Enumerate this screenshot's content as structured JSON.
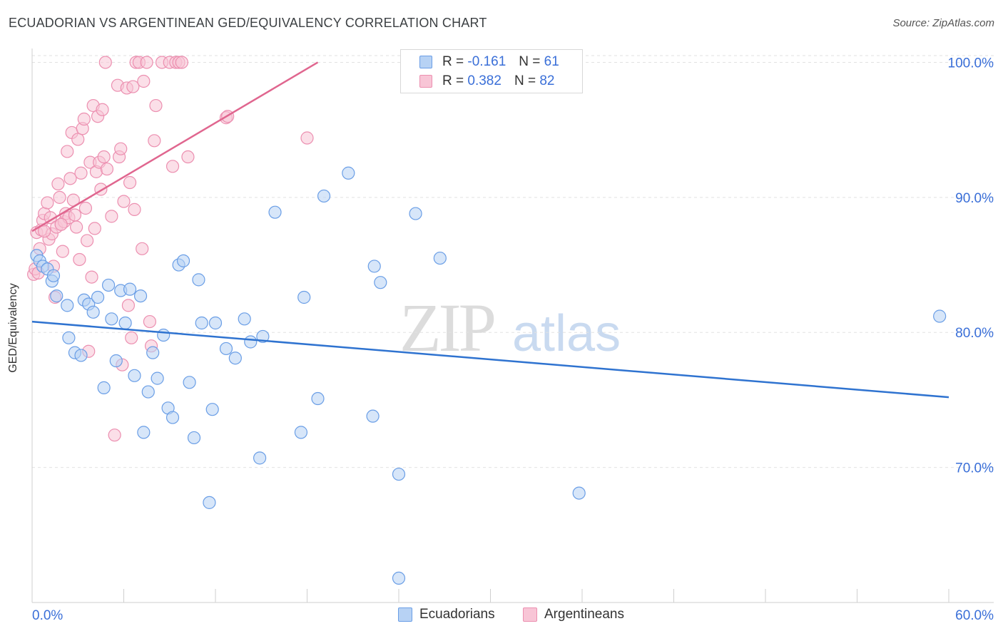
{
  "title": "ECUADORIAN VS ARGENTINEAN GED/EQUIVALENCY CORRELATION CHART",
  "source": "Source: ZipAtlas.com",
  "watermark": {
    "zip": "ZIP",
    "atlas": "atlas"
  },
  "legend": {
    "rows": [
      {
        "r_label": "R =",
        "r_value": "-0.161",
        "n_label": "N =",
        "n_value": "61"
      },
      {
        "r_label": "R =",
        "r_value": "0.382",
        "n_label": "N =",
        "n_value": "82"
      }
    ]
  },
  "bottom_legend": [
    "Ecuadorians",
    "Argentineans"
  ],
  "colors": {
    "blue_fill": "#b7d2f4",
    "blue_stroke": "#6a9ee6",
    "blue_line": "#2f73d0",
    "pink_fill": "#f8c5d6",
    "pink_stroke": "#ec8fb0",
    "pink_line": "#e0668f",
    "tick_label": "#3a6fd8",
    "grid": "#e2e2e2"
  },
  "chart_data": {
    "type": "scatter",
    "title": "ECUADORIAN VS ARGENTINEAN GED/EQUIVALENCY CORRELATION CHART",
    "xlabel": "",
    "ylabel": "GED/Equivalency",
    "xlim": [
      0,
      60
    ],
    "ylim": [
      60,
      100.5
    ],
    "x_tick_labels": [
      "0.0%",
      "60.0%"
    ],
    "y_ticks": [
      70,
      80,
      90,
      100
    ],
    "y_tick_labels": [
      "70.0%",
      "80.0%",
      "90.0%",
      "100.0%"
    ],
    "grid": true,
    "legend_position": "top-center",
    "series": [
      {
        "name": "Ecuadorians",
        "color": "#6a9ee6",
        "r": -0.161,
        "n": 61,
        "trend": {
          "x": [
            0,
            60
          ],
          "y": [
            80.8,
            75.2
          ]
        },
        "points": [
          [
            0.3,
            85.7
          ],
          [
            0.5,
            85.3
          ],
          [
            0.7,
            84.9
          ],
          [
            1.0,
            84.7
          ],
          [
            1.3,
            83.8
          ],
          [
            1.4,
            84.2
          ],
          [
            1.6,
            82.7
          ],
          [
            2.3,
            82.0
          ],
          [
            2.4,
            79.6
          ],
          [
            2.8,
            78.5
          ],
          [
            3.2,
            78.3
          ],
          [
            3.4,
            82.4
          ],
          [
            3.7,
            82.1
          ],
          [
            4.0,
            81.5
          ],
          [
            4.3,
            82.6
          ],
          [
            4.7,
            75.9
          ],
          [
            5.0,
            83.5
          ],
          [
            5.2,
            81.0
          ],
          [
            5.5,
            77.9
          ],
          [
            5.8,
            83.1
          ],
          [
            6.1,
            80.7
          ],
          [
            6.4,
            83.2
          ],
          [
            6.7,
            76.8
          ],
          [
            7.1,
            82.7
          ],
          [
            7.3,
            72.6
          ],
          [
            7.6,
            75.6
          ],
          [
            7.9,
            78.5
          ],
          [
            8.2,
            76.6
          ],
          [
            8.6,
            79.8
          ],
          [
            8.9,
            74.4
          ],
          [
            9.2,
            73.7
          ],
          [
            9.6,
            85.0
          ],
          [
            9.9,
            85.3
          ],
          [
            10.3,
            76.3
          ],
          [
            10.6,
            72.2
          ],
          [
            10.9,
            83.9
          ],
          [
            11.1,
            80.7
          ],
          [
            11.6,
            67.4
          ],
          [
            11.8,
            74.3
          ],
          [
            12.0,
            80.7
          ],
          [
            12.7,
            78.8
          ],
          [
            13.3,
            78.1
          ],
          [
            13.9,
            81.0
          ],
          [
            14.3,
            79.3
          ],
          [
            14.9,
            70.7
          ],
          [
            15.1,
            79.7
          ],
          [
            15.9,
            88.9
          ],
          [
            17.6,
            72.6
          ],
          [
            17.8,
            82.6
          ],
          [
            18.7,
            75.1
          ],
          [
            19.1,
            90.1
          ],
          [
            20.7,
            91.8
          ],
          [
            22.3,
            73.8
          ],
          [
            22.4,
            84.9
          ],
          [
            22.8,
            83.7
          ],
          [
            24.0,
            69.5
          ],
          [
            24.0,
            61.8
          ],
          [
            25.1,
            88.8
          ],
          [
            26.7,
            85.5
          ],
          [
            35.8,
            68.1
          ],
          [
            59.4,
            81.2
          ]
        ]
      },
      {
        "name": "Argentineans",
        "color": "#ec8fb0",
        "r": 0.382,
        "n": 82,
        "trend": {
          "x": [
            0,
            18.7
          ],
          "y": [
            87.5,
            100
          ]
        },
        "points": [
          [
            0.1,
            84.3
          ],
          [
            0.2,
            84.7
          ],
          [
            0.3,
            87.4
          ],
          [
            0.4,
            84.4
          ],
          [
            0.5,
            86.2
          ],
          [
            0.6,
            87.6
          ],
          [
            0.7,
            88.3
          ],
          [
            0.8,
            88.8
          ],
          [
            1.0,
            89.6
          ],
          [
            1.1,
            86.9
          ],
          [
            1.2,
            88.5
          ],
          [
            1.3,
            87.3
          ],
          [
            1.4,
            84.9
          ],
          [
            1.5,
            82.6
          ],
          [
            1.6,
            87.8
          ],
          [
            1.7,
            91.0
          ],
          [
            1.8,
            90.0
          ],
          [
            1.9,
            88.0
          ],
          [
            2.0,
            86.0
          ],
          [
            2.1,
            88.2
          ],
          [
            2.2,
            88.8
          ],
          [
            2.3,
            93.4
          ],
          [
            2.4,
            88.5
          ],
          [
            2.5,
            91.4
          ],
          [
            2.6,
            94.8
          ],
          [
            2.7,
            89.8
          ],
          [
            2.8,
            88.7
          ],
          [
            2.9,
            87.8
          ],
          [
            3.0,
            94.3
          ],
          [
            3.1,
            85.4
          ],
          [
            3.2,
            91.8
          ],
          [
            3.3,
            95.1
          ],
          [
            3.4,
            95.8
          ],
          [
            3.5,
            89.2
          ],
          [
            3.6,
            86.8
          ],
          [
            3.7,
            78.6
          ],
          [
            3.8,
            92.6
          ],
          [
            3.9,
            84.1
          ],
          [
            4.0,
            96.8
          ],
          [
            4.1,
            87.7
          ],
          [
            4.2,
            91.9
          ],
          [
            4.3,
            96.0
          ],
          [
            4.4,
            92.6
          ],
          [
            4.5,
            90.6
          ],
          [
            4.6,
            96.5
          ],
          [
            4.7,
            93.0
          ],
          [
            4.8,
            100.0
          ],
          [
            4.9,
            92.1
          ],
          [
            5.2,
            88.6
          ],
          [
            5.4,
            72.4
          ],
          [
            5.6,
            98.3
          ],
          [
            5.7,
            93.0
          ],
          [
            5.8,
            93.6
          ],
          [
            5.9,
            77.6
          ],
          [
            6.0,
            89.7
          ],
          [
            6.2,
            98.1
          ],
          [
            6.3,
            82.0
          ],
          [
            6.4,
            91.1
          ],
          [
            6.5,
            79.6
          ],
          [
            6.6,
            98.2
          ],
          [
            6.7,
            89.1
          ],
          [
            6.8,
            100.0
          ],
          [
            7.0,
            100.0
          ],
          [
            7.2,
            86.2
          ],
          [
            7.3,
            98.6
          ],
          [
            7.5,
            100.0
          ],
          [
            7.7,
            80.8
          ],
          [
            7.8,
            79.0
          ],
          [
            8.0,
            94.2
          ],
          [
            8.1,
            96.8
          ],
          [
            8.5,
            100.0
          ],
          [
            9.0,
            100.0
          ],
          [
            9.2,
            92.3
          ],
          [
            9.4,
            100.0
          ],
          [
            9.6,
            100.0
          ],
          [
            9.8,
            100.0
          ],
          [
            10.2,
            93.0
          ],
          [
            12.7,
            95.9
          ],
          [
            12.8,
            96.0
          ],
          [
            18.0,
            94.4
          ],
          [
            0.8,
            87.5
          ],
          [
            1.9,
            88.0
          ]
        ]
      }
    ]
  }
}
